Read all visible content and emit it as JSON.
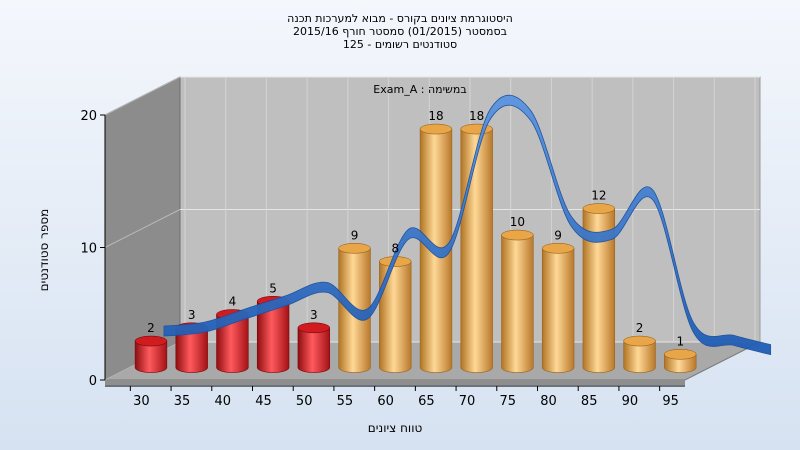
{
  "chart_data": {
    "type": "bar",
    "title_lines": [
      "היסטוגרמת ציונים בקורס - מבוא למערכות תכנה",
      "בסמסטר  (01/2015)  סמסטר חורף 2015/16",
      "סטודנטים רשומים - 125"
    ],
    "subtitle": "Exam_A : במשימה",
    "xlabel": "טווח ציונים",
    "ylabel": "מספר סטודנטים",
    "categories": [
      "30",
      "35",
      "40",
      "45",
      "50",
      "55",
      "60",
      "65",
      "70",
      "75",
      "80",
      "85",
      "90",
      "95"
    ],
    "values": [
      2,
      3,
      4,
      5,
      3,
      9,
      8,
      18,
      18,
      10,
      9,
      12,
      2,
      1
    ],
    "data_labels": [
      "2",
      "3",
      "4",
      "5",
      "3",
      "9",
      "8",
      "18",
      "18",
      "10",
      "9",
      "12",
      "2",
      "1"
    ],
    "yticks": [
      "0",
      "10",
      "20"
    ],
    "ylim": [
      0,
      20
    ],
    "fail_count": 5,
    "colors": {
      "fail": "#e8252a",
      "pass": "#f0b354",
      "overlay": "#2f6fc4",
      "back_wall": "#bfbfbf",
      "side_wall": "#8c8c8c",
      "floor": "#a9a9a9",
      "background": "#e4ecf7"
    }
  }
}
